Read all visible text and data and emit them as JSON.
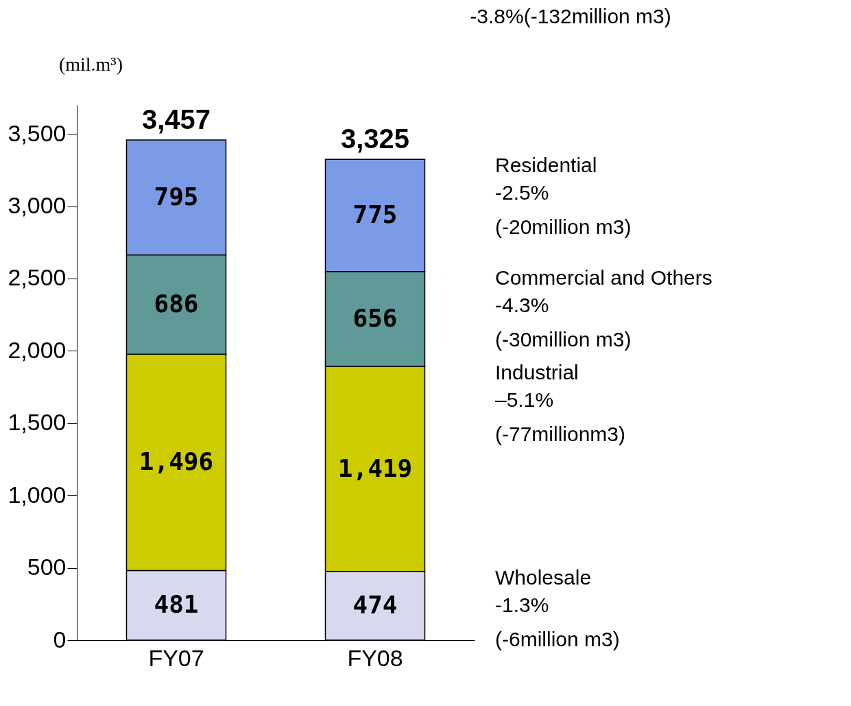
{
  "chart_data": {
    "type": "bar",
    "stacked": true,
    "grid": false,
    "ylabel": "(mil.m³)",
    "categories": [
      "FY07",
      "FY08"
    ],
    "series": [
      {
        "name": "Wholesale",
        "color": "#d8d8ee",
        "values": [
          481,
          474
        ],
        "value_labels": [
          "481",
          "474"
        ]
      },
      {
        "name": "Industrial",
        "color": "#cccc00",
        "values": [
          1496,
          1419
        ],
        "value_labels": [
          "1,496",
          "1,419"
        ]
      },
      {
        "name": "Commercial and Others",
        "color": "#5f9a98",
        "values": [
          686,
          656
        ],
        "value_labels": [
          "686",
          "656"
        ]
      },
      {
        "name": "Residential",
        "color": "#7b9be6",
        "values": [
          795,
          775
        ],
        "value_labels": [
          "795",
          "775"
        ]
      }
    ],
    "totals": [
      "3,457",
      "3,325"
    ],
    "ylim": [
      0,
      3700
    ],
    "yticks": [
      0,
      500,
      {
        "value": 1000,
        "label": "1,000"
      },
      {
        "value": 1500,
        "label": "1,500"
      },
      {
        "value": 2000,
        "label": "2,000"
      },
      {
        "value": 2500,
        "label": "2,500"
      },
      {
        "value": 3000,
        "label": "3,000"
      },
      {
        "value": 3500,
        "label": "3,500"
      }
    ],
    "annotations": [
      "-3.8%(-132million m3)",
      "-1.3%\n(-6million m3)",
      "–5.1%\n(-77millionm3)",
      "-4.3%\n(-30million m3)",
      "-2.5%\n(-20million m3)"
    ]
  }
}
